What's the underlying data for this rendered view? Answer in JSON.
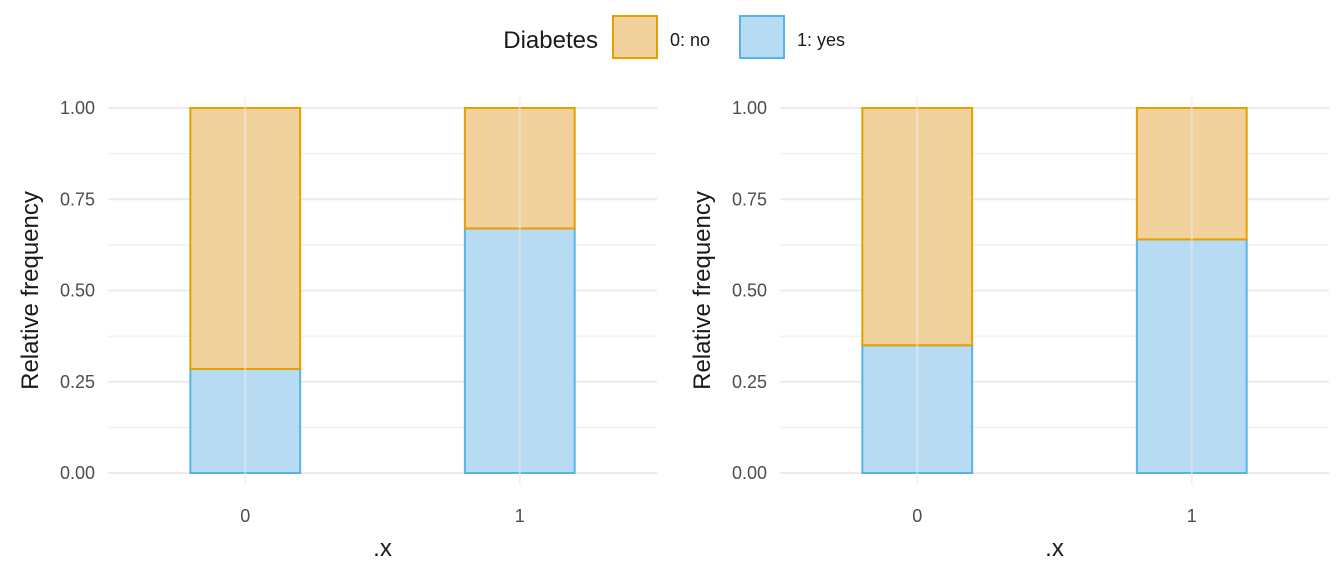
{
  "legend": {
    "title": "Diabetes",
    "items": [
      {
        "label": "0: no",
        "fill": "#f1d29c",
        "stroke": "#e69f00"
      },
      {
        "label": "1: yes",
        "fill": "#b7dbf3",
        "stroke": "#56b4e9"
      }
    ]
  },
  "chart_data": [
    {
      "type": "bar",
      "stacked": true,
      "categories": [
        "0",
        "1"
      ],
      "series": [
        {
          "name": "0: no",
          "values": [
            0.715,
            0.33
          ]
        },
        {
          "name": "1: yes",
          "values": [
            0.285,
            0.67
          ]
        }
      ],
      "xlabel": ".x",
      "ylabel": "Relative frequency",
      "ylim": [
        0,
        1
      ],
      "yticks": [
        "0.00",
        "0.25",
        "0.50",
        "0.75",
        "1.00"
      ],
      "grid": true
    },
    {
      "type": "bar",
      "stacked": true,
      "categories": [
        "0",
        "1"
      ],
      "series": [
        {
          "name": "0: no",
          "values": [
            0.65,
            0.36
          ]
        },
        {
          "name": "1: yes",
          "values": [
            0.35,
            0.64
          ]
        }
      ],
      "xlabel": ".x",
      "ylabel": "Relative frequency",
      "ylim": [
        0,
        1
      ],
      "yticks": [
        "0.00",
        "0.25",
        "0.50",
        "0.75",
        "1.00"
      ],
      "grid": true
    }
  ]
}
